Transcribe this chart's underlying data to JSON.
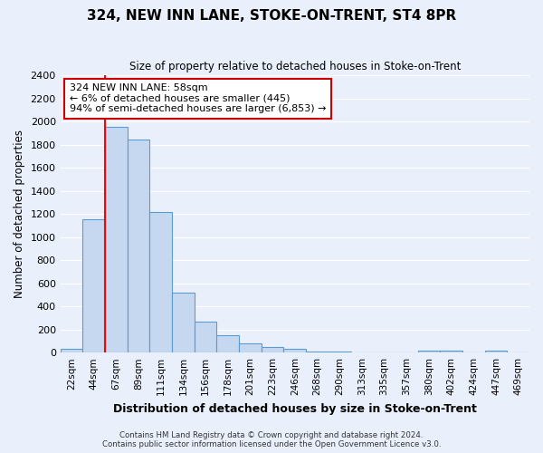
{
  "title": "324, NEW INN LANE, STOKE-ON-TRENT, ST4 8PR",
  "subtitle": "Size of property relative to detached houses in Stoke-on-Trent",
  "xlabel": "Distribution of detached houses by size in Stoke-on-Trent",
  "ylabel": "Number of detached properties",
  "bar_labels": [
    "22sqm",
    "44sqm",
    "67sqm",
    "89sqm",
    "111sqm",
    "134sqm",
    "156sqm",
    "178sqm",
    "201sqm",
    "223sqm",
    "246sqm",
    "268sqm",
    "290sqm",
    "313sqm",
    "335sqm",
    "357sqm",
    "380sqm",
    "402sqm",
    "424sqm",
    "447sqm",
    "469sqm"
  ],
  "bar_values": [
    30,
    1155,
    1950,
    1840,
    1220,
    520,
    265,
    148,
    78,
    48,
    35,
    8,
    8,
    5,
    5,
    0,
    18,
    15,
    0,
    20,
    5
  ],
  "bar_color": "#c5d8f0",
  "bar_edge_color": "#5b9bd5",
  "annotation_text": "324 NEW INN LANE: 58sqm\n← 6% of detached houses are smaller (445)\n94% of semi-detached houses are larger (6,853) →",
  "ylim": [
    0,
    2400
  ],
  "yticks": [
    0,
    200,
    400,
    600,
    800,
    1000,
    1200,
    1400,
    1600,
    1800,
    2000,
    2200,
    2400
  ],
  "background_color": "#eaf0fb",
  "grid_color": "#ffffff",
  "footer_line1": "Contains HM Land Registry data © Crown copyright and database right 2024.",
  "footer_line2": "Contains public sector information licensed under the Open Government Licence v3.0."
}
